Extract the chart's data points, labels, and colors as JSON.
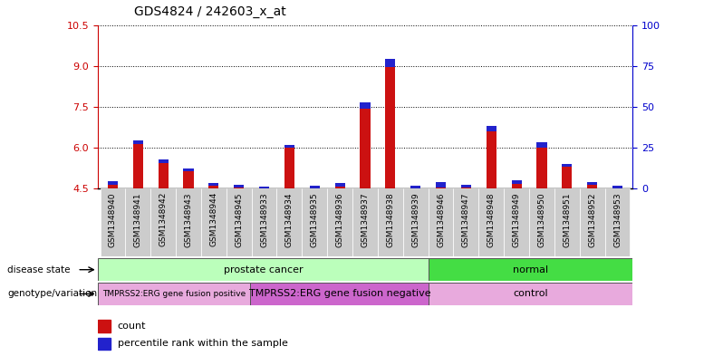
{
  "title": "GDS4824 / 242603_x_at",
  "samples": [
    "GSM1348940",
    "GSM1348941",
    "GSM1348942",
    "GSM1348943",
    "GSM1348944",
    "GSM1348945",
    "GSM1348933",
    "GSM1348934",
    "GSM1348935",
    "GSM1348936",
    "GSM1348937",
    "GSM1348938",
    "GSM1348939",
    "GSM1348946",
    "GSM1348947",
    "GSM1348948",
    "GSM1348949",
    "GSM1348950",
    "GSM1348951",
    "GSM1348952",
    "GSM1348953"
  ],
  "count_values": [
    4.7,
    6.2,
    5.5,
    5.2,
    4.65,
    4.6,
    4.55,
    6.05,
    4.55,
    4.65,
    7.55,
    9.1,
    4.55,
    4.65,
    4.6,
    6.7,
    4.75,
    6.1,
    5.35,
    4.7,
    4.55
  ],
  "percentile_values": [
    3,
    3,
    3,
    2,
    2,
    2,
    1.5,
    2.5,
    2,
    3,
    5,
    6,
    2,
    4,
    2,
    4.5,
    3,
    4,
    2.5,
    2,
    2
  ],
  "ymin": 4.5,
  "ymax": 10.5,
  "yticks_left": [
    4.5,
    6.0,
    7.5,
    9.0,
    10.5
  ],
  "yticks_right": [
    0,
    25,
    50,
    75,
    100
  ],
  "bar_color_red": "#cc1111",
  "bar_color_blue": "#2222cc",
  "disease_state_groups": [
    {
      "label": "prostate cancer",
      "start": 0,
      "end": 12,
      "color": "#bbffbb"
    },
    {
      "label": "normal",
      "start": 13,
      "end": 20,
      "color": "#44dd44"
    }
  ],
  "genotype_groups": [
    {
      "label": "TMPRSS2:ERG gene fusion positive",
      "start": 0,
      "end": 5,
      "color": "#e8aadd"
    },
    {
      "label": "TMPRSS2:ERG gene fusion negative",
      "start": 6,
      "end": 12,
      "color": "#cc66cc"
    },
    {
      "label": "control",
      "start": 13,
      "end": 20,
      "color": "#e8aadd"
    }
  ],
  "bar_width": 0.4,
  "xlabel_fontsize": 6.5,
  "title_fontsize": 10,
  "left_label_color": "#cc0000",
  "right_label_color": "#0000cc",
  "xticklabel_bg": "#cccccc",
  "chart_bg": "#ffffff",
  "gap_color": "#aaaaaa"
}
